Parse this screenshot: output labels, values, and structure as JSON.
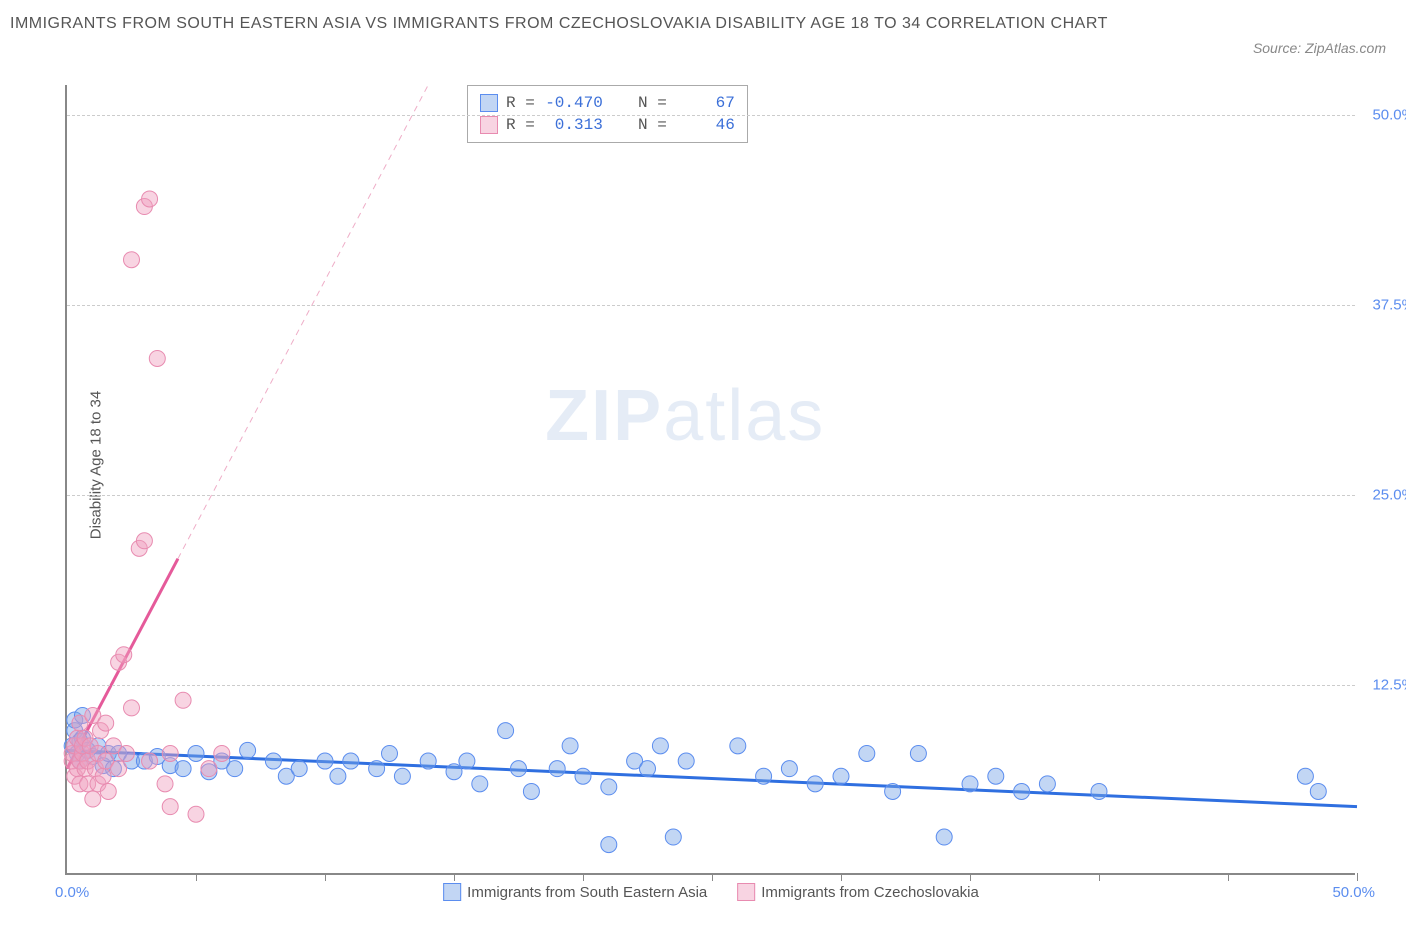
{
  "title": "IMMIGRANTS FROM SOUTH EASTERN ASIA VS IMMIGRANTS FROM CZECHOSLOVAKIA DISABILITY AGE 18 TO 34 CORRELATION CHART",
  "source_label": "Source: ZipAtlas.com",
  "ylabel": "Disability Age 18 to 34",
  "watermark_a": "ZIP",
  "watermark_b": "atlas",
  "chart": {
    "type": "scatter",
    "xlim": [
      0,
      50
    ],
    "ylim": [
      0,
      52
    ],
    "xmin_label": "0.0%",
    "xmax_label": "50.0%",
    "xtick_positions": [
      5,
      10,
      15,
      20,
      25,
      30,
      35,
      40,
      45,
      50
    ],
    "yticks": [
      {
        "v": 12.5,
        "label": "12.5%"
      },
      {
        "v": 25.0,
        "label": "25.0%"
      },
      {
        "v": 37.5,
        "label": "37.5%"
      },
      {
        "v": 50.0,
        "label": "50.0%"
      }
    ],
    "marker_radius": 8,
    "colors": {
      "blue_fill": "#7aa5e6",
      "blue_stroke": "#5b8def",
      "pink_fill": "#f0a0be",
      "pink_stroke": "#e88bb0",
      "trend_blue": "#2f6fe0",
      "trend_pink": "#e55a9a",
      "grid": "#cccccc",
      "axis": "#888888",
      "tick_text": "#5b8def",
      "background": "#ffffff"
    },
    "series": [
      {
        "id": "blue",
        "name": "Immigrants from South Eastern Asia",
        "R": "-0.470",
        "N": "67",
        "trend": {
          "x1": 0,
          "y1": 8.2,
          "x2": 50,
          "y2": 4.5,
          "solid_until_x": 50
        },
        "points": [
          [
            0.2,
            8.5
          ],
          [
            0.3,
            9.5
          ],
          [
            0.3,
            10.2
          ],
          [
            0.4,
            8.0
          ],
          [
            0.5,
            7.5
          ],
          [
            0.5,
            8.8
          ],
          [
            0.6,
            9.0
          ],
          [
            0.6,
            10.5
          ],
          [
            0.8,
            8.2
          ],
          [
            1.0,
            7.8
          ],
          [
            1.2,
            8.5
          ],
          [
            1.4,
            7.2
          ],
          [
            1.6,
            8.0
          ],
          [
            1.8,
            7.0
          ],
          [
            2.0,
            8.0
          ],
          [
            2.5,
            7.5
          ],
          [
            3.0,
            7.5
          ],
          [
            3.5,
            7.8
          ],
          [
            4.0,
            7.2
          ],
          [
            4.5,
            7.0
          ],
          [
            5.0,
            8.0
          ],
          [
            5.5,
            6.8
          ],
          [
            6.0,
            7.5
          ],
          [
            6.5,
            7.0
          ],
          [
            7.0,
            8.2
          ],
          [
            8.0,
            7.5
          ],
          [
            8.5,
            6.5
          ],
          [
            9.0,
            7.0
          ],
          [
            10.0,
            7.5
          ],
          [
            10.5,
            6.5
          ],
          [
            11.0,
            7.5
          ],
          [
            12.0,
            7.0
          ],
          [
            12.5,
            8.0
          ],
          [
            13.0,
            6.5
          ],
          [
            14.0,
            7.5
          ],
          [
            15.0,
            6.8
          ],
          [
            15.5,
            7.5
          ],
          [
            16.0,
            6.0
          ],
          [
            17.0,
            9.5
          ],
          [
            17.5,
            7.0
          ],
          [
            18.0,
            5.5
          ],
          [
            19.0,
            7.0
          ],
          [
            19.5,
            8.5
          ],
          [
            20.0,
            6.5
          ],
          [
            21.0,
            5.8
          ],
          [
            21.0,
            2.0
          ],
          [
            22.0,
            7.5
          ],
          [
            22.5,
            7.0
          ],
          [
            23.0,
            8.5
          ],
          [
            23.5,
            2.5
          ],
          [
            24.0,
            7.5
          ],
          [
            26.0,
            8.5
          ],
          [
            27.0,
            6.5
          ],
          [
            28.0,
            7.0
          ],
          [
            29.0,
            6.0
          ],
          [
            30.0,
            6.5
          ],
          [
            31.0,
            8.0
          ],
          [
            32.0,
            5.5
          ],
          [
            33.0,
            8.0
          ],
          [
            34.0,
            2.5
          ],
          [
            35.0,
            6.0
          ],
          [
            36.0,
            6.5
          ],
          [
            37.0,
            5.5
          ],
          [
            38.0,
            6.0
          ],
          [
            40.0,
            5.5
          ],
          [
            48.0,
            6.5
          ],
          [
            48.5,
            5.5
          ]
        ]
      },
      {
        "id": "pink",
        "name": "Immigrants from Czechoslovakia",
        "R": "0.313",
        "N": "46",
        "trend": {
          "x1": 0,
          "y1": 7.0,
          "x2": 14,
          "y2": 52,
          "solid_until_x": 4.3
        },
        "points": [
          [
            0.2,
            7.5
          ],
          [
            0.2,
            8.0
          ],
          [
            0.3,
            8.5
          ],
          [
            0.3,
            6.5
          ],
          [
            0.4,
            7.0
          ],
          [
            0.4,
            9.0
          ],
          [
            0.5,
            7.5
          ],
          [
            0.5,
            10.0
          ],
          [
            0.5,
            6.0
          ],
          [
            0.6,
            8.0
          ],
          [
            0.6,
            8.5
          ],
          [
            0.7,
            7.0
          ],
          [
            0.7,
            9.0
          ],
          [
            0.8,
            6.0
          ],
          [
            0.8,
            7.5
          ],
          [
            0.9,
            8.5
          ],
          [
            1.0,
            5.0
          ],
          [
            1.0,
            10.5
          ],
          [
            1.1,
            7.0
          ],
          [
            1.2,
            6.0
          ],
          [
            1.2,
            8.0
          ],
          [
            1.3,
            9.5
          ],
          [
            1.4,
            6.5
          ],
          [
            1.5,
            7.5
          ],
          [
            1.5,
            10.0
          ],
          [
            1.6,
            5.5
          ],
          [
            1.8,
            8.5
          ],
          [
            2.0,
            14.0
          ],
          [
            2.0,
            7.0
          ],
          [
            2.2,
            14.5
          ],
          [
            2.3,
            8.0
          ],
          [
            2.5,
            11.0
          ],
          [
            2.8,
            21.5
          ],
          [
            3.0,
            22.0
          ],
          [
            3.2,
            7.5
          ],
          [
            3.5,
            34.0
          ],
          [
            3.8,
            6.0
          ],
          [
            4.0,
            4.5
          ],
          [
            4.0,
            8.0
          ],
          [
            4.5,
            11.5
          ],
          [
            5.0,
            4.0
          ],
          [
            2.5,
            40.5
          ],
          [
            3.0,
            44.0
          ],
          [
            3.2,
            44.5
          ],
          [
            5.5,
            7.0
          ],
          [
            6.0,
            8.0
          ]
        ]
      }
    ],
    "legend_stats_labels": {
      "R": "R =",
      "N": "N ="
    }
  }
}
